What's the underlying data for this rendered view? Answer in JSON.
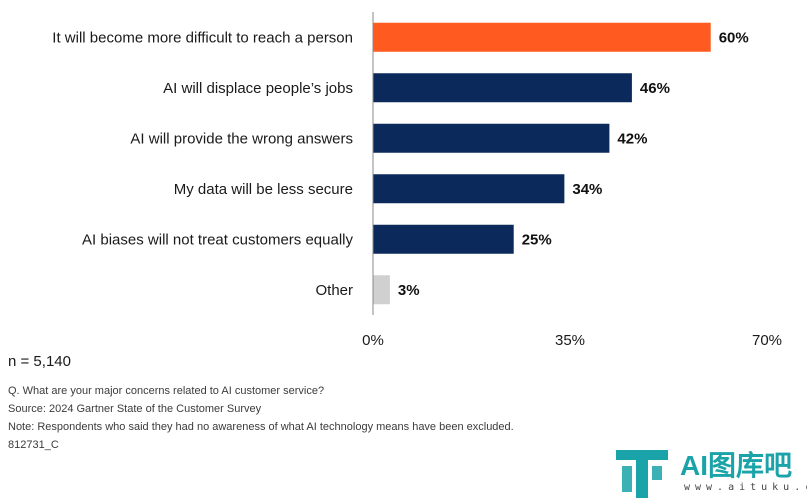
{
  "chart_data": {
    "type": "bar",
    "orientation": "horizontal",
    "categories": [
      "It will become more difficult to reach a person",
      "AI will displace people’s jobs",
      "AI will provide the wrong answers",
      "My data will be less secure",
      "AI biases will not treat customers equally",
      "Other"
    ],
    "values": [
      60,
      46,
      42,
      34,
      25,
      3
    ],
    "value_labels": [
      "60%",
      "46%",
      "42%",
      "34%",
      "25%",
      "3%"
    ],
    "colors": [
      "#ff5a1f",
      "#0b2a5b",
      "#0b2a5b",
      "#0b2a5b",
      "#0b2a5b",
      "#d0d0d0"
    ],
    "xlim": [
      0,
      70
    ],
    "xticks": [
      0,
      35,
      70
    ],
    "xtick_labels": [
      "0%",
      "35%",
      "70%"
    ],
    "grid": false
  },
  "notes": {
    "n": "n = 5,140",
    "lines": [
      "Q. What are your major concerns related to AI customer service?",
      "Source: 2024 Gartner State of the Customer Survey",
      "Note: Respondents who said they had no awareness of what AI technology means have been excluded.",
      "812731_C"
    ]
  },
  "watermark": {
    "text": "AI图库吧",
    "url": "www.aituku.cc",
    "color": "#1aa3a8"
  }
}
